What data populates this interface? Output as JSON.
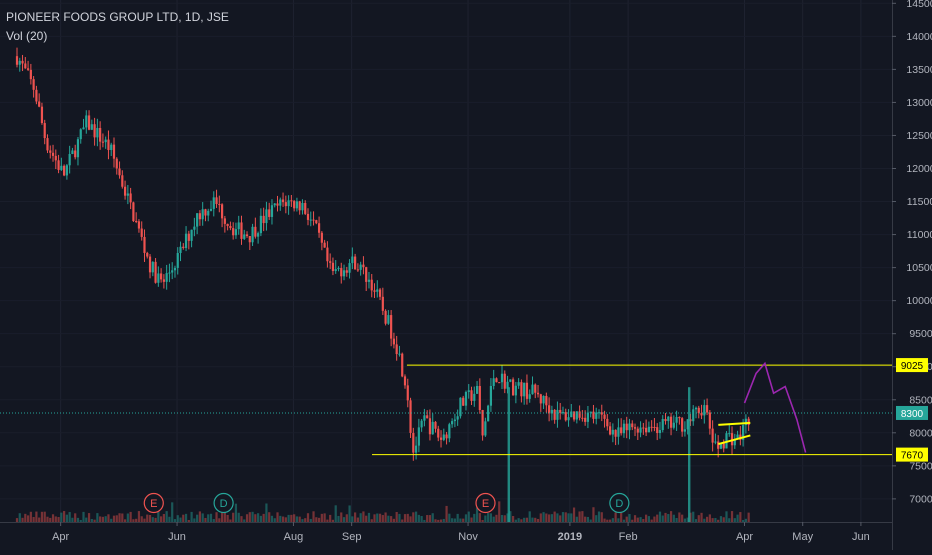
{
  "header": {
    "symbol_title": "PIONEER FOODS GROUP LTD, 1D, JSE",
    "volume_indicator": "Vol (20)"
  },
  "colors": {
    "background": "#131722",
    "up": "#26a69a",
    "down": "#ef5350",
    "levels": "#ffff00",
    "projection": "#9c27b0",
    "earnings_marker": "#ef5350",
    "dividend_marker": "#26a69a",
    "last_price": "#26a69a"
  },
  "chart_data": {
    "type": "candlestick",
    "title": "PIONEER FOODS GROUP LTD, 1D, JSE",
    "ylim": [
      6650,
      14550
    ],
    "y_ticks": [
      7000,
      7500,
      8000,
      8500,
      9000,
      9500,
      10000,
      10500,
      11000,
      11500,
      12000,
      12500,
      13000,
      13500,
      14000,
      14500
    ],
    "x_ticks": [
      "Apr",
      "Jun",
      "Aug",
      "Sep",
      "Nov",
      "2019",
      "Feb",
      "Apr",
      "May",
      "Jun"
    ],
    "x_tick_positions": [
      0.75,
      2.75,
      4.75,
      5.75,
      7.75,
      9.5,
      10.5,
      12.5,
      13.5,
      14.5
    ],
    "x_range": [
      0,
      16
    ],
    "price_path": [
      [
        0.0,
        13700
      ],
      [
        0.3,
        13200
      ],
      [
        0.5,
        12400
      ],
      [
        0.8,
        11900
      ],
      [
        1.2,
        12700
      ],
      [
        1.6,
        12300
      ],
      [
        1.8,
        11800
      ],
      [
        2.0,
        11300
      ],
      [
        2.3,
        10500
      ],
      [
        2.5,
        10250
      ],
      [
        2.8,
        10700
      ],
      [
        3.1,
        11300
      ],
      [
        3.4,
        11500
      ],
      [
        3.7,
        11100
      ],
      [
        4.0,
        11000
      ],
      [
        4.3,
        11300
      ],
      [
        4.6,
        11500
      ],
      [
        4.9,
        11450
      ],
      [
        5.1,
        11150
      ],
      [
        5.4,
        10400
      ],
      [
        5.8,
        10600
      ],
      [
        6.1,
        10250
      ],
      [
        6.5,
        9400
      ],
      [
        6.7,
        8700
      ],
      [
        6.8,
        7700
      ],
      [
        7.0,
        8200
      ],
      [
        7.3,
        7900
      ],
      [
        7.6,
        8400
      ],
      [
        7.9,
        8650
      ],
      [
        8.0,
        7950
      ],
      [
        8.2,
        8900
      ],
      [
        8.5,
        8700
      ],
      [
        8.9,
        8600
      ],
      [
        9.3,
        8250
      ],
      [
        9.7,
        8300
      ],
      [
        10.1,
        8200
      ],
      [
        10.3,
        7950
      ],
      [
        10.6,
        8100
      ],
      [
        11.0,
        8100
      ],
      [
        11.5,
        8150
      ],
      [
        11.8,
        8400
      ],
      [
        12.0,
        7750
      ],
      [
        12.2,
        7950
      ],
      [
        12.4,
        7900
      ],
      [
        12.6,
        8300
      ]
    ],
    "levels": [
      {
        "label": "9025",
        "value": 9025,
        "x_start": 6.7,
        "x_end": 16
      },
      {
        "label": "7670",
        "value": 7670,
        "x_start": 6.1,
        "x_end": 16
      }
    ],
    "last_price": {
      "label": "8300",
      "value": 8300
    },
    "projection_path": [
      [
        12.5,
        8450
      ],
      [
        12.7,
        8900
      ],
      [
        12.85,
        9050
      ],
      [
        13.0,
        8600
      ],
      [
        13.2,
        8700
      ],
      [
        13.4,
        8200
      ],
      [
        13.55,
        7700
      ]
    ],
    "pattern_triangle": {
      "upper": [
        [
          12.05,
          8120
        ],
        [
          12.6,
          8150
        ]
      ],
      "lower": [
        [
          12.05,
          7830
        ],
        [
          12.6,
          7960
        ]
      ]
    },
    "event_markers": [
      {
        "type": "earnings",
        "letter": "E",
        "x": 2.35
      },
      {
        "type": "dividend",
        "letter": "D",
        "x": 3.55
      },
      {
        "type": "earnings",
        "letter": "E",
        "x": 8.05
      },
      {
        "type": "dividend",
        "letter": "D",
        "x": 10.35
      }
    ],
    "volume_spikes": [
      {
        "x": 8.45,
        "height": 0.85
      },
      {
        "x": 11.55,
        "height": 0.85
      }
    ]
  }
}
